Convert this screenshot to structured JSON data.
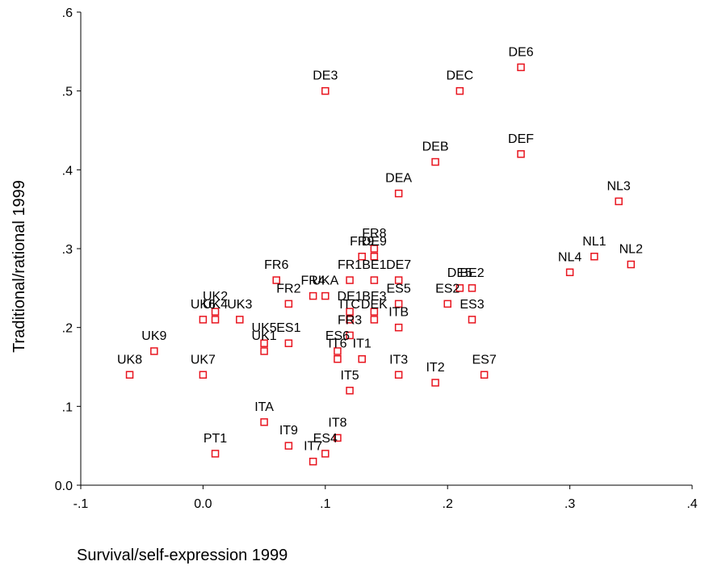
{
  "chart_data": {
    "type": "scatter",
    "x_label": "Survival/self-expression 1999",
    "y_label": "Traditional/rational 1999",
    "xlim": [
      -0.1,
      0.4
    ],
    "ylim": [
      0,
      0.6
    ],
    "xticks": [
      {
        "value": -0.1,
        "label": "-.1"
      },
      {
        "value": 0,
        "label": "0.0"
      },
      {
        "value": 0.1,
        "label": ".1"
      },
      {
        "value": 0.2,
        "label": ".2"
      },
      {
        "value": 0.3,
        "label": ".3"
      },
      {
        "value": 0.4,
        "label": ".4"
      }
    ],
    "yticks": [
      {
        "value": 0,
        "label": "0.0"
      },
      {
        "value": 0.1,
        "label": ".1"
      },
      {
        "value": 0.2,
        "label": ".2"
      },
      {
        "value": 0.3,
        "label": ".3"
      },
      {
        "value": 0.4,
        "label": ".4"
      },
      {
        "value": 0.5,
        "label": ".5"
      },
      {
        "value": 0.6,
        "label": ".6"
      }
    ],
    "color": "#e8141e",
    "labels": [
      "DE6",
      "DEC",
      "DE3",
      "DEB",
      "DEF",
      "DEA",
      "NL3",
      "NL1",
      "NL2",
      "NL4",
      "FR6",
      "FR2",
      "FR4",
      "UKA",
      "FR8",
      "FR9",
      "DE9",
      "FR1",
      "BE1",
      "DE7",
      "DE1",
      "ES5",
      "BE3",
      "ITC",
      "DEK",
      "FR3",
      "ITB",
      "ES6",
      "IT6",
      "IT1",
      "DE5",
      "BE2",
      "ES2",
      "ES3",
      "IT3",
      "IT2",
      "ES7",
      "IT5",
      "UK2",
      "UK6",
      "UK4",
      "UK3",
      "UK5",
      "ES1",
      "UK1",
      "UK9",
      "UK8",
      "UK7",
      "ITA",
      "PT1",
      "IT9",
      "IT8",
      "ES4",
      "IT7"
    ],
    "x": [
      0.26,
      0.21,
      0.1,
      0.19,
      0.26,
      0.16,
      0.34,
      0.32,
      0.35,
      0.3,
      0.06,
      0.07,
      0.09,
      0.1,
      0.14,
      0.13,
      0.14,
      0.12,
      0.14,
      0.16,
      0.12,
      0.16,
      0.14,
      0.12,
      0.14,
      0.12,
      0.16,
      0.11,
      0.11,
      0.13,
      0.21,
      0.22,
      0.2,
      0.22,
      0.16,
      0.19,
      0.23,
      0.12,
      0.01,
      0.0,
      0.01,
      0.03,
      0.05,
      0.07,
      0.05,
      -0.04,
      -0.06,
      0.0,
      0.05,
      0.01,
      0.07,
      0.11,
      0.1,
      0.09
    ],
    "y": [
      0.53,
      0.5,
      0.5,
      0.41,
      0.42,
      0.37,
      0.36,
      0.29,
      0.28,
      0.27,
      0.26,
      0.23,
      0.24,
      0.24,
      0.3,
      0.29,
      0.29,
      0.26,
      0.26,
      0.26,
      0.22,
      0.23,
      0.22,
      0.21,
      0.21,
      0.19,
      0.2,
      0.17,
      0.16,
      0.16,
      0.25,
      0.25,
      0.23,
      0.21,
      0.14,
      0.13,
      0.14,
      0.12,
      0.22,
      0.21,
      0.21,
      0.21,
      0.18,
      0.18,
      0.17,
      0.17,
      0.14,
      0.14,
      0.08,
      0.04,
      0.05,
      0.06,
      0.04,
      0.03
    ]
  }
}
